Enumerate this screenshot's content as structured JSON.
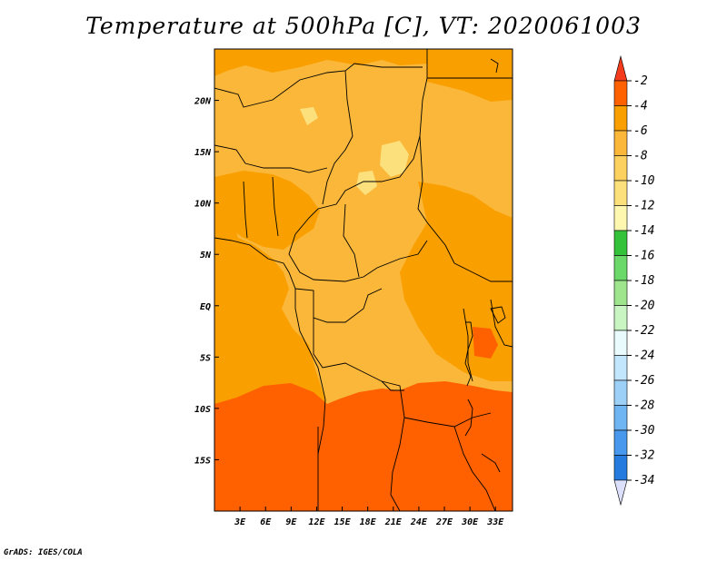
{
  "title": "Temperature at 500hPa [C], VT: 2020061003",
  "credit": "GrADS: IGES/COLA",
  "map": {
    "lon_range": [
      0,
      35
    ],
    "lat_range": [
      -20,
      25
    ],
    "x_ticks": [
      "3E",
      "6E",
      "9E",
      "12E",
      "15E",
      "18E",
      "21E",
      "24E",
      "27E",
      "30E",
      "33E"
    ],
    "x_tick_lons": [
      3,
      6,
      9,
      12,
      15,
      18,
      21,
      24,
      27,
      30,
      33
    ],
    "y_ticks": [
      "20N",
      "15N",
      "10N",
      "5N",
      "EQ",
      "5S",
      "10S",
      "15S"
    ],
    "y_tick_lats": [
      20,
      15,
      10,
      5,
      0,
      -5,
      -10,
      -15
    ],
    "colors": {
      "band_m2_m4": "#ff6000",
      "band_m4_m6": "#f9a000",
      "band_m6_m8": "#fab73a",
      "band_m8_m10": "#fce07c",
      "border": "#000000"
    }
  },
  "colorbar": {
    "labels": [
      "-2",
      "-4",
      "-6",
      "-8",
      "-10",
      "-12",
      "-14",
      "-16",
      "-18",
      "-20",
      "-22",
      "-24",
      "-26",
      "-28",
      "-30",
      "-32",
      "-34"
    ],
    "top_color": "#f43c1c",
    "bottom_color": "#dde0fa",
    "band_colors": [
      "#ff6000",
      "#f9a000",
      "#fab73a",
      "#fdd160",
      "#fce07c",
      "#fef7b0",
      "#33c23a",
      "#6bd86a",
      "#9ee58e",
      "#c9f5c3",
      "#e9fbfc",
      "#c2e6fb",
      "#9dd0f7",
      "#6fb5f3",
      "#4898ee",
      "#267bdf",
      "#1460c9",
      "#0a44af",
      "#061a80"
    ]
  }
}
